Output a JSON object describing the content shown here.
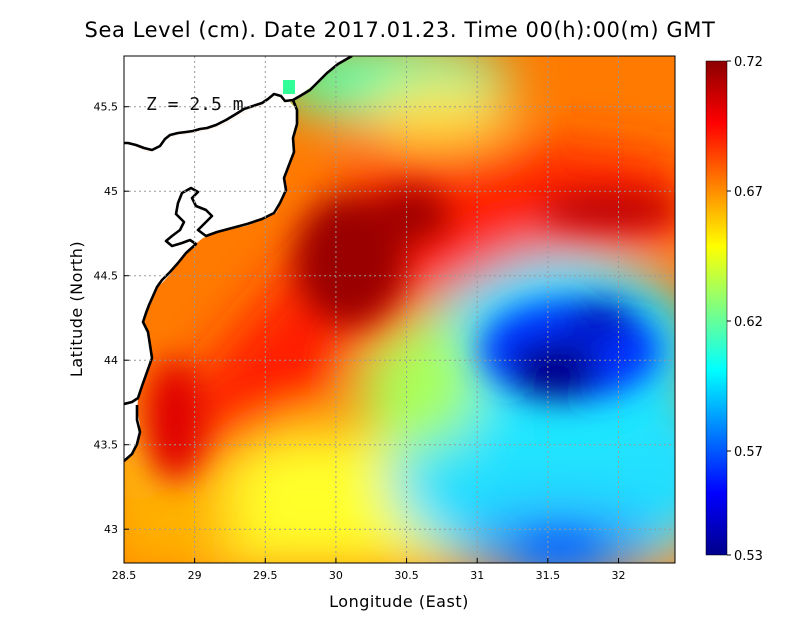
{
  "title": "Sea Level (cm). Date 2017.01.23. Time 00(h):00(m) GMT",
  "depth_label": "Z = 2.5 m",
  "colors": {
    "colormap": [
      "#00008b",
      "#0000ff",
      "#0080ff",
      "#00ffff",
      "#80ff80",
      "#ffff00",
      "#ff8000",
      "#ff0000",
      "#8b0000"
    ],
    "land": "#ffffff",
    "coastline": "#000000",
    "grid": "#9a9a9a"
  },
  "chart_data": {
    "type": "heatmap",
    "variable": "Sea Level (cm)",
    "xlabel": "Longitude (East)",
    "ylabel": "Latitude (North)",
    "xlim": [
      28.5,
      32.4
    ],
    "ylim": [
      42.8,
      45.8
    ],
    "x_ticks": [
      "28.5",
      "29",
      "29.5",
      "30",
      "30.5",
      "31",
      "31.5",
      "32"
    ],
    "x_tick_values": [
      28.5,
      29,
      29.5,
      30,
      30.5,
      31,
      31.5,
      32
    ],
    "y_ticks": [
      "43",
      "43.5",
      "44",
      "44.5",
      "45",
      "45.5"
    ],
    "y_tick_values": [
      43,
      43.5,
      44,
      44.5,
      45,
      45.5
    ],
    "colorbar": {
      "min": 0.53,
      "max": 0.72,
      "tick_labels": [
        "0.72",
        "0.67",
        "0.62",
        "0.57",
        "0.53"
      ],
      "tick_values": [
        0.72,
        0.67,
        0.62,
        0.57,
        0.53
      ]
    },
    "features": [
      {
        "description": "high sea level ridge",
        "lon": 30.0,
        "lat": 44.6,
        "value": 0.72
      },
      {
        "description": "high sea level, eastern north",
        "lon": 32.2,
        "lat": 44.9,
        "value": 0.71
      },
      {
        "description": "low sea level eddy",
        "lon": 31.6,
        "lat": 43.9,
        "value": 0.53
      },
      {
        "description": "low sea level, south-east",
        "lon": 31.5,
        "lat": 42.9,
        "value": 0.57
      },
      {
        "description": "moderate level, south-west",
        "lon": 29.0,
        "lat": 43.0,
        "value": 0.65
      },
      {
        "description": "moderate level, north",
        "lon": 30.0,
        "lat": 45.7,
        "value": 0.63
      }
    ]
  }
}
